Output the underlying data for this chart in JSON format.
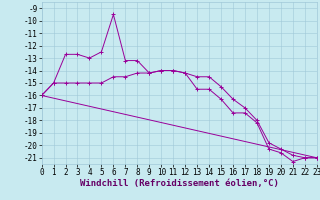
{
  "xlabel": "Windchill (Refroidissement éolien,°C)",
  "background_color": "#c8eaf0",
  "grid_color": "#a0c8d8",
  "line_color": "#990099",
  "xlim": [
    0,
    23
  ],
  "ylim": [
    -21.5,
    -8.5
  ],
  "yticks": [
    -21,
    -20,
    -19,
    -18,
    -17,
    -16,
    -15,
    -14,
    -13,
    -12,
    -11,
    -10,
    -9
  ],
  "xticks": [
    0,
    1,
    2,
    3,
    4,
    5,
    6,
    7,
    8,
    9,
    10,
    11,
    12,
    13,
    14,
    15,
    16,
    17,
    18,
    19,
    20,
    21,
    22,
    23
  ],
  "series1_x": [
    0,
    1,
    2,
    3,
    4,
    5,
    6,
    7,
    8,
    9,
    10,
    11,
    12,
    13,
    14,
    15,
    16,
    17,
    18,
    19,
    20,
    21,
    22,
    23
  ],
  "series1_y": [
    -16.0,
    -15.0,
    -12.7,
    -12.7,
    -13.0,
    -12.5,
    -9.5,
    -13.2,
    -13.2,
    -14.2,
    -14.0,
    -14.0,
    -14.2,
    -15.5,
    -15.5,
    -16.3,
    -17.4,
    -17.4,
    -18.2,
    -20.3,
    -20.6,
    -21.3,
    -21.0,
    -21.0
  ],
  "series2_x": [
    0,
    1,
    2,
    3,
    4,
    5,
    6,
    7,
    8,
    9,
    10,
    11,
    12,
    13,
    14,
    15,
    16,
    17,
    18,
    19,
    20,
    21,
    22,
    23
  ],
  "series2_y": [
    -16.0,
    -15.0,
    -15.0,
    -15.0,
    -15.0,
    -15.0,
    -14.5,
    -14.5,
    -14.2,
    -14.2,
    -14.0,
    -14.0,
    -14.2,
    -14.5,
    -14.5,
    -15.3,
    -16.3,
    -17.0,
    -18.0,
    -19.8,
    -20.3,
    -20.8,
    -21.0,
    -21.0
  ],
  "trend_x": [
    0,
    23
  ],
  "trend_y": [
    -16.0,
    -21.0
  ],
  "xlabel_fontsize": 6.5,
  "tick_fontsize": 5.5
}
